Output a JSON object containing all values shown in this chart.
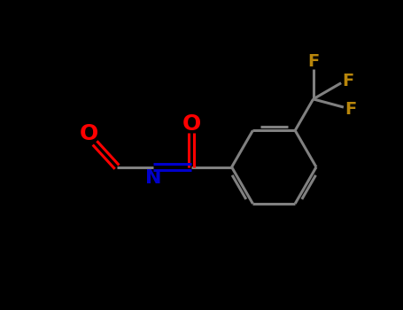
{
  "background_color": "#000000",
  "bond_color": "#808080",
  "o_color": "#ff0000",
  "n_color": "#0000cc",
  "f_color": "#b8860b",
  "line_width": 2.2,
  "figsize": [
    4.55,
    3.5
  ],
  "dpi": 100,
  "xlim": [
    0,
    10
  ],
  "ylim": [
    0,
    7.7
  ]
}
